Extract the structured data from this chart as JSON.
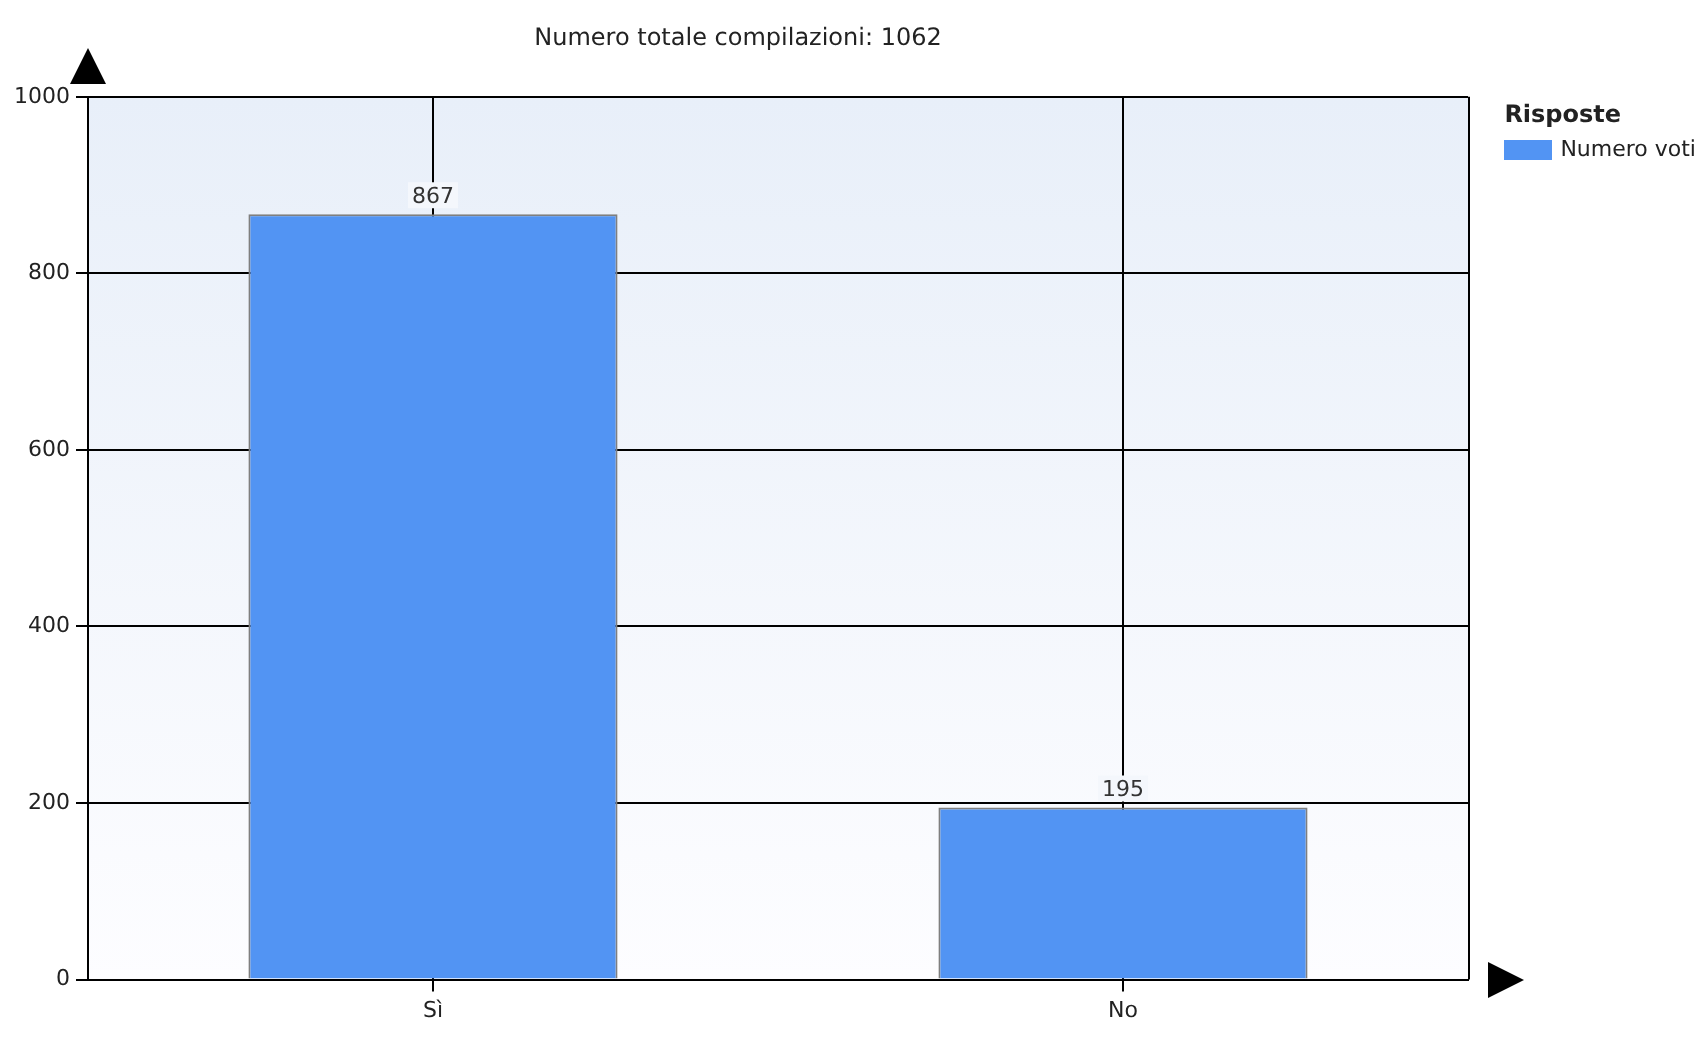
{
  "chart_data": {
    "type": "bar",
    "title": "Numero totale compilazioni: 1062",
    "categories": [
      "Sì",
      "No"
    ],
    "series": [
      {
        "name": "Numero voti",
        "color": "#5294f3",
        "values": [
          867,
          195
        ]
      }
    ],
    "legend_title": "Risposte",
    "legend": "top right",
    "ylim": [
      0,
      1000
    ],
    "yticks": [
      0,
      200,
      400,
      600,
      800,
      1000
    ],
    "grid": true,
    "data_labels": true
  }
}
